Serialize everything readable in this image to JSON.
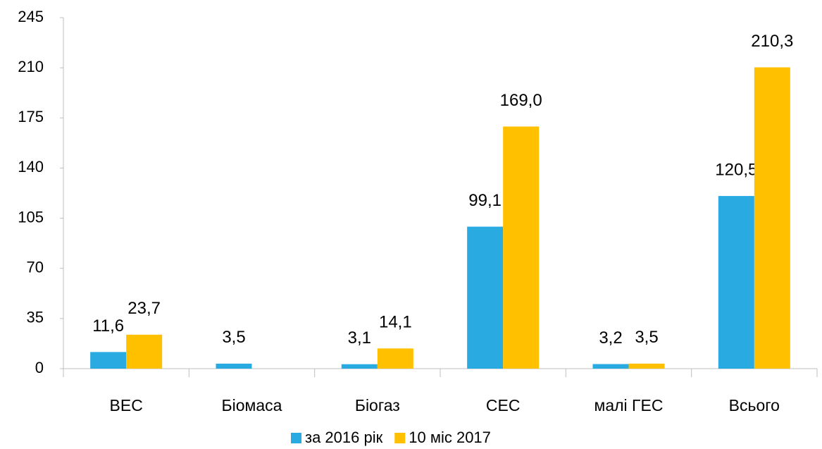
{
  "chart_data": {
    "type": "bar",
    "categories": [
      "ВЕС",
      "Біомаса",
      "Біогаз",
      "СЕС",
      "малі ГЕС",
      "Всього"
    ],
    "series": [
      {
        "name": "за 2016 рік",
        "color": "#29abe2",
        "values": [
          11.6,
          3.5,
          3.1,
          99.1,
          3.2,
          120.5
        ],
        "value_labels": [
          "11,6",
          "3,5",
          "3,1",
          "99,1",
          "3,2",
          "120,5"
        ]
      },
      {
        "name": "10 міс 2017",
        "color": "#ffc000",
        "values": [
          23.7,
          null,
          14.1,
          169.0,
          3.5,
          210.3
        ],
        "value_labels": [
          "23,7",
          null,
          "14,1",
          "169,0",
          "3,5",
          "210,3"
        ]
      }
    ],
    "ylim": [
      0,
      245
    ],
    "yticks": [
      0,
      35,
      70,
      105,
      140,
      175,
      210,
      245
    ],
    "grid": false,
    "legend": "bottom"
  }
}
